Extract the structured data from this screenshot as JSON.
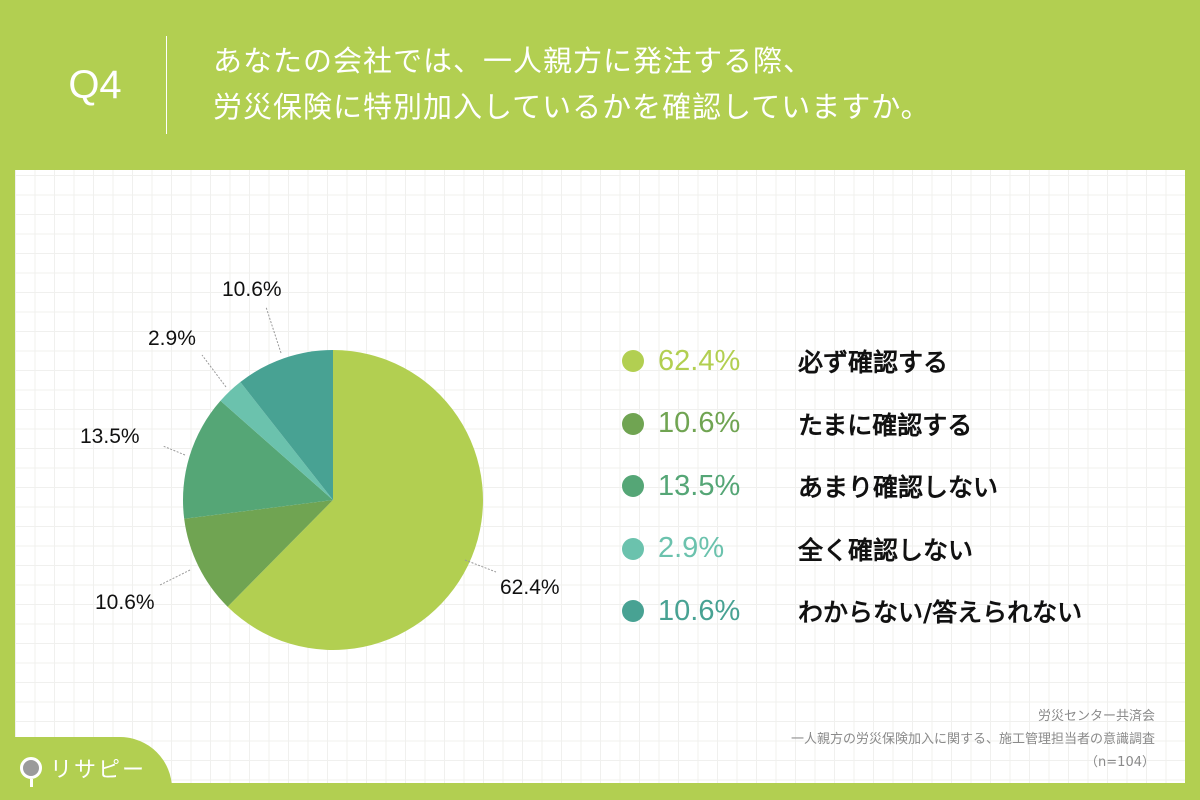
{
  "header": {
    "question_no": "Q4",
    "title_line1": "あなたの会社では、一人親方に発注する際、",
    "title_line2": "労災保険に特別加入しているかを確認していますか。"
  },
  "colors": {
    "background": "#b2cf51",
    "slice1": "#b2cf51",
    "slice2": "#70a452",
    "slice3": "#55a676",
    "slice4": "#6bc2ad",
    "slice5": "#48a293"
  },
  "legend": [
    {
      "pct": "62.4%",
      "label": "必ず確認する",
      "color": "#b2cf51"
    },
    {
      "pct": "10.6%",
      "label": "たまに確認する",
      "color": "#70a452"
    },
    {
      "pct": "13.5%",
      "label": "あまり確認しない",
      "color": "#55a676"
    },
    {
      "pct": "2.9%",
      "label": "全く確認しない",
      "color": "#6bc2ad"
    },
    {
      "pct": "10.6%",
      "label": "わからない/答えられない",
      "color": "#48a293"
    }
  ],
  "pie_labels": [
    "62.4%",
    "10.6%",
    "13.5%",
    "2.9%",
    "10.6%"
  ],
  "source": {
    "line1": "労災センター共済会",
    "line2": "一人親方の労災保険加入に関する、施工管理担当者の意識調査",
    "line3": "（n=104）"
  },
  "logo": {
    "text": "リサピー"
  },
  "chart_data": {
    "type": "pie",
    "title": "Q4 あなたの会社では、一人親方に発注する際、労災保険に特別加入しているかを確認していますか。",
    "categories": [
      "必ず確認する",
      "たまに確認する",
      "あまり確認しない",
      "全く確認しない",
      "わからない/答えられない"
    ],
    "values": [
      62.4,
      10.6,
      13.5,
      2.9,
      10.6
    ],
    "unit": "%",
    "colors": [
      "#b2cf51",
      "#70a452",
      "#55a676",
      "#6bc2ad",
      "#48a293"
    ],
    "start_angle": "12 o'clock",
    "direction": "clockwise",
    "legend_position": "right",
    "sample_size": "n=104",
    "source": "労災センター共済会 一人親方の労災保険加入に関する、施工管理担当者の意識調査"
  }
}
